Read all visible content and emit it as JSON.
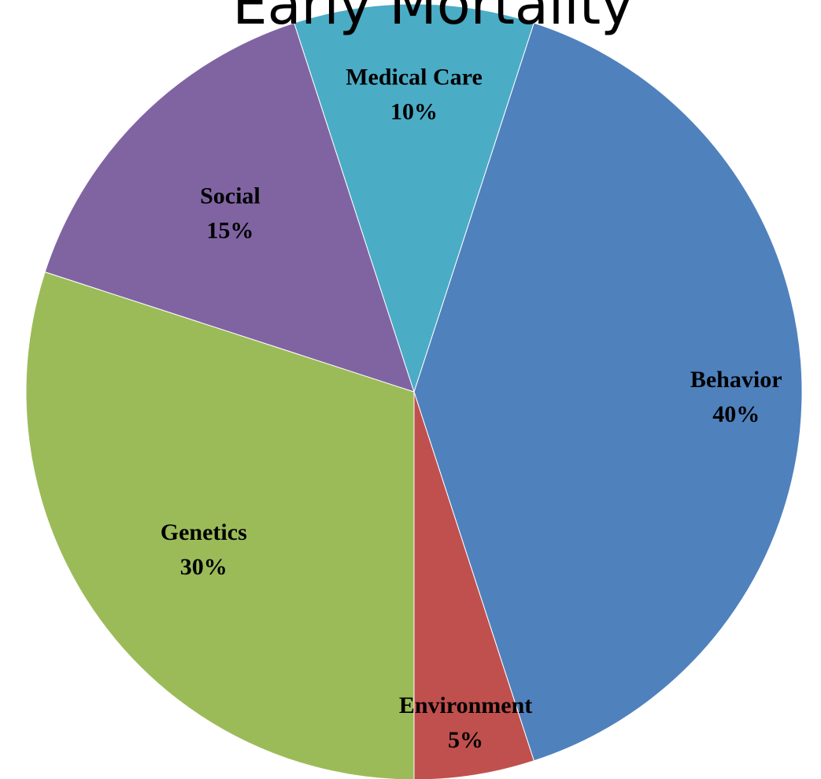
{
  "chart_data": {
    "type": "pie",
    "title": "Early Mortality",
    "categories": [
      "Behavior",
      "Environment",
      "Genetics",
      "Social",
      "Medical Care"
    ],
    "values": [
      40,
      5,
      30,
      15,
      10
    ],
    "value_labels": [
      "40%",
      "5%",
      "30%",
      "15%",
      "10%"
    ],
    "colors": [
      "#4F81BD",
      "#C0504D",
      "#9BBB59",
      "#8064A2",
      "#4BACC6"
    ],
    "start_angle_deg": -72,
    "direction": "clockwise",
    "legend": "none",
    "data_labels": "inside"
  }
}
